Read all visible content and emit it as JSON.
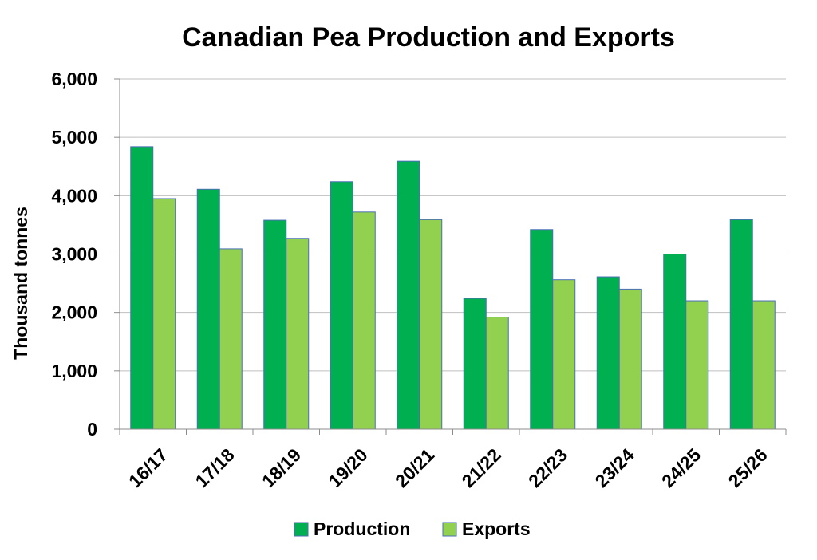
{
  "chart_data": {
    "type": "bar",
    "title": "Canadian Pea Production and Exports",
    "xlabel": "",
    "ylabel": "Thousand tonnes",
    "ylim": [
      0,
      6000
    ],
    "yticks": [
      "0",
      "1,000",
      "2,000",
      "3,000",
      "4,000",
      "5,000",
      "6,000"
    ],
    "ytick_values": [
      0,
      1000,
      2000,
      3000,
      4000,
      5000,
      6000
    ],
    "categories": [
      "16/17",
      "17/18",
      "18/19",
      "19/20",
      "20/21",
      "21/22",
      "22/23",
      "23/24",
      "24/25",
      "25/26"
    ],
    "series": [
      {
        "name": "Production",
        "color": "#00b050",
        "values": [
          4840,
          4110,
          3580,
          4240,
          4590,
          2240,
          3420,
          2610,
          3000,
          3590
        ]
      },
      {
        "name": "Exports",
        "color": "#92d050",
        "values": [
          3950,
          3090,
          3270,
          3720,
          3590,
          1920,
          2560,
          2400,
          2200,
          2200
        ]
      }
    ],
    "grid": true,
    "legend": "bottom"
  }
}
